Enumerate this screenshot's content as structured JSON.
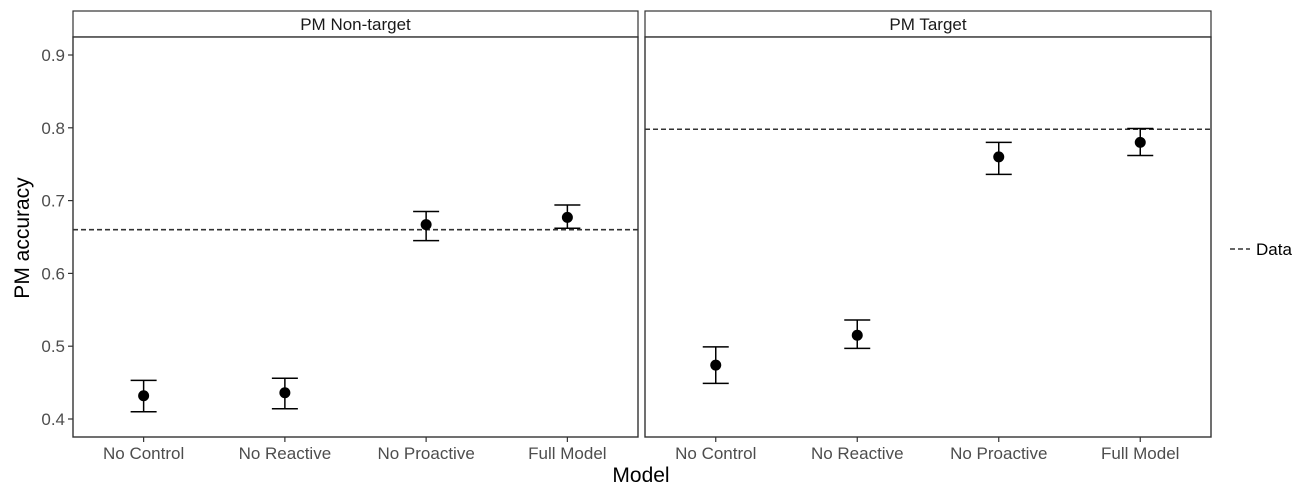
{
  "chart_data": {
    "type": "scatter",
    "xlabel": "Model",
    "ylabel": "PM accuracy",
    "categories": [
      "No Control",
      "No Reactive",
      "No Proactive",
      "Full Model"
    ],
    "ylim": [
      0.375,
      0.925
    ],
    "yticks": [
      0.4,
      0.5,
      0.6,
      0.7,
      0.8,
      0.9
    ],
    "ytick_labels": [
      "0.4",
      "0.5",
      "0.6",
      "0.7",
      "0.8",
      "0.9"
    ],
    "grid": false,
    "legend": {
      "position": "right",
      "entries": [
        {
          "label": "Data",
          "style": "dashed"
        }
      ]
    },
    "panels": [
      {
        "title": "PM Non-target",
        "reference_line": 0.66,
        "points": [
          {
            "x": "No Control",
            "y": 0.432,
            "ymin": 0.41,
            "ymax": 0.453
          },
          {
            "x": "No Reactive",
            "y": 0.436,
            "ymin": 0.414,
            "ymax": 0.456
          },
          {
            "x": "No Proactive",
            "y": 0.667,
            "ymin": 0.645,
            "ymax": 0.685
          },
          {
            "x": "Full Model",
            "y": 0.677,
            "ymin": 0.662,
            "ymax": 0.694
          }
        ]
      },
      {
        "title": "PM Target",
        "reference_line": 0.798,
        "points": [
          {
            "x": "No Control",
            "y": 0.474,
            "ymin": 0.449,
            "ymax": 0.499
          },
          {
            "x": "No Reactive",
            "y": 0.515,
            "ymin": 0.497,
            "ymax": 0.536
          },
          {
            "x": "No Proactive",
            "y": 0.76,
            "ymin": 0.736,
            "ymax": 0.78
          },
          {
            "x": "Full Model",
            "y": 0.78,
            "ymin": 0.762,
            "ymax": 0.799
          }
        ]
      }
    ]
  }
}
